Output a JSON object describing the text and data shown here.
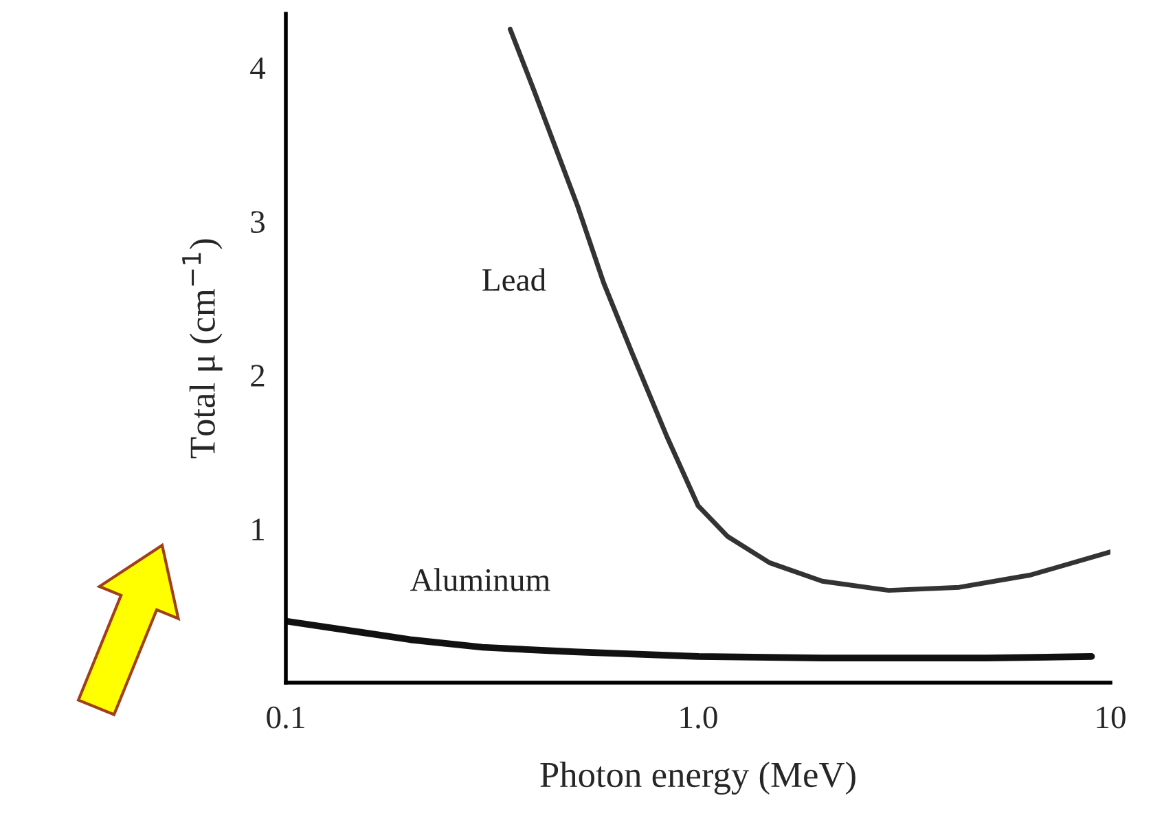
{
  "chart_data": {
    "type": "line",
    "xlabel": "Photon energy (MeV)",
    "ylabel": "Total μ (cm$^{−1}$)",
    "log": "x",
    "xlim": [
      0.1,
      10
    ],
    "xticks": [
      {
        "value": 0.1,
        "label": "0.1"
      },
      {
        "value": 1,
        "label": "1.0"
      },
      {
        "value": 10,
        "label": "10"
      }
    ],
    "ylim": [
      0,
      4.35
    ],
    "yticks": [
      1,
      2,
      3,
      4
    ],
    "grid": false,
    "legend": false,
    "marker": "none",
    "line_style": "solid",
    "series": [
      {
        "name": "Lead",
        "color": "#333333",
        "x": [
          0.35,
          0.4,
          0.51,
          0.59,
          0.69,
          0.84,
          1.0,
          1.18,
          1.49,
          2.0,
          2.9,
          4.3,
          6.4,
          10
        ],
        "values": [
          4.25,
          3.85,
          3.1,
          2.6,
          2.15,
          1.6,
          1.15,
          0.95,
          0.78,
          0.66,
          0.6,
          0.62,
          0.7,
          0.85
        ]
      },
      {
        "name": "Aluminum",
        "color": "#111111",
        "x": [
          0.1,
          0.15,
          0.2,
          0.3,
          0.5,
          1.0,
          2,
          5,
          9
        ],
        "values": [
          0.4,
          0.33,
          0.28,
          0.23,
          0.2,
          0.17,
          0.16,
          0.16,
          0.17
        ]
      }
    ]
  }
}
